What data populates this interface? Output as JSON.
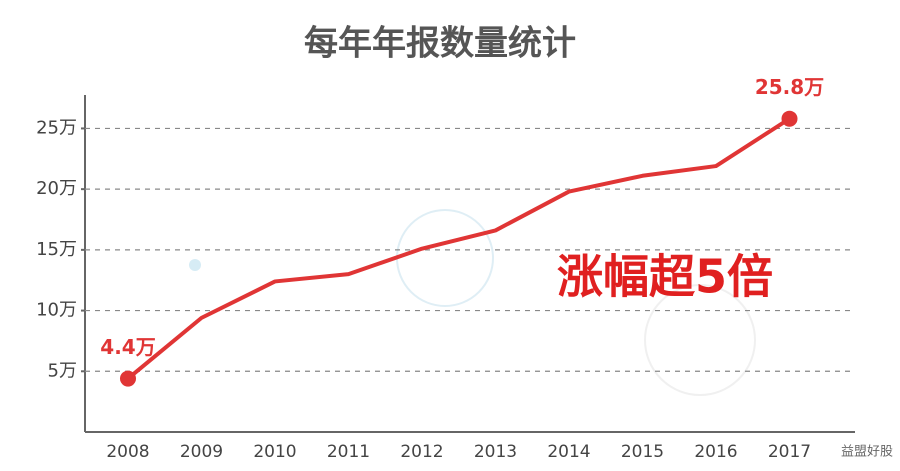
{
  "chart_data": {
    "type": "line",
    "title": "每年年报数量统计",
    "categories": [
      "2008",
      "2009",
      "2010",
      "2011",
      "2012",
      "2013",
      "2014",
      "2015",
      "2016",
      "2017"
    ],
    "series": [
      {
        "name": null,
        "color": "#e03535",
        "values": [
          4.4,
          9.4,
          12.4,
          13.0,
          15.1,
          16.6,
          19.8,
          21.1,
          21.9,
          25.8
        ],
        "value_labels": [
          "4.4万",
          null,
          null,
          null,
          null,
          null,
          null,
          null,
          null,
          "25.8万"
        ]
      }
    ],
    "ylim": [
      0,
      28
    ],
    "yticks": [
      {
        "value": 5,
        "label": "5万"
      },
      {
        "value": 10,
        "label": "10万"
      },
      {
        "value": 15,
        "label": "15万"
      },
      {
        "value": 20,
        "label": "20万"
      },
      {
        "value": 25,
        "label": "25万"
      }
    ],
    "grid": true,
    "annotation": "涨幅超5倍",
    "watermark": "益盟好股"
  }
}
